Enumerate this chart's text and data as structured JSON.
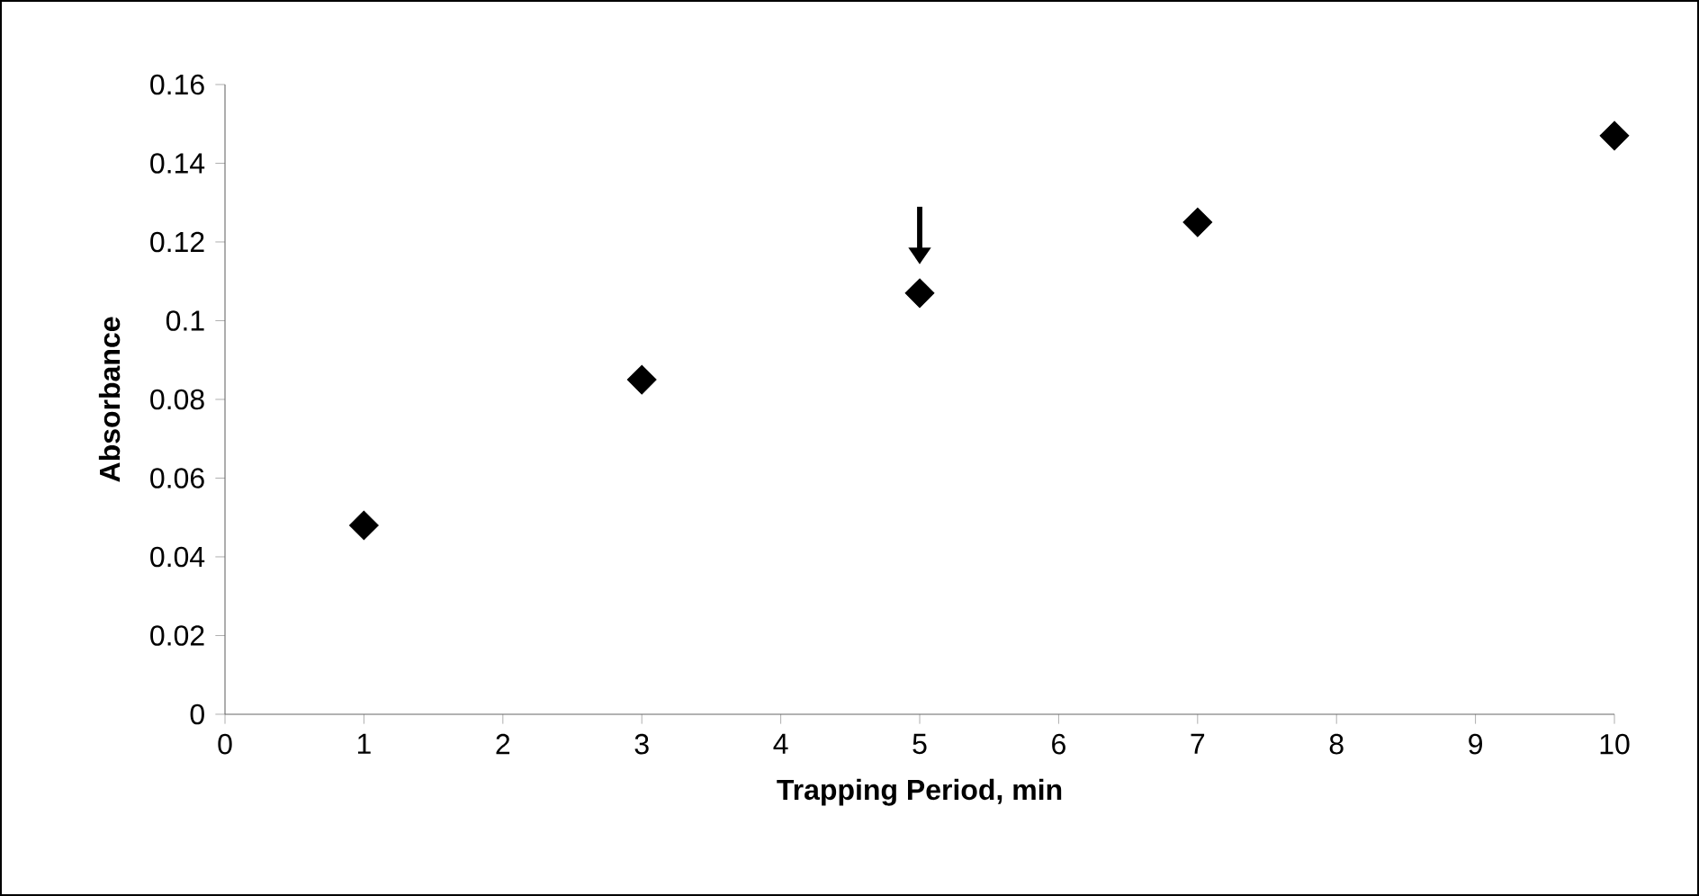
{
  "chart_data": {
    "type": "scatter",
    "xlabel": "Trapping Period, min",
    "ylabel": "Absorbance",
    "x": [
      1,
      3,
      5,
      7,
      10
    ],
    "series": [
      {
        "color": "#000000",
        "values": [
          0.048,
          0.085,
          0.107,
          0.125,
          0.147
        ]
      }
    ],
    "marker": "diamond",
    "xlim": [
      0,
      10
    ],
    "xticks": [
      0,
      1,
      2,
      3,
      4,
      5,
      6,
      7,
      8,
      9,
      10
    ],
    "ylim": [
      0,
      0.16
    ],
    "yticks": [
      0,
      0.02,
      0.04,
      0.06,
      0.08,
      0.1,
      0.12,
      0.14,
      0.16
    ],
    "grid": false,
    "legend": false
  }
}
